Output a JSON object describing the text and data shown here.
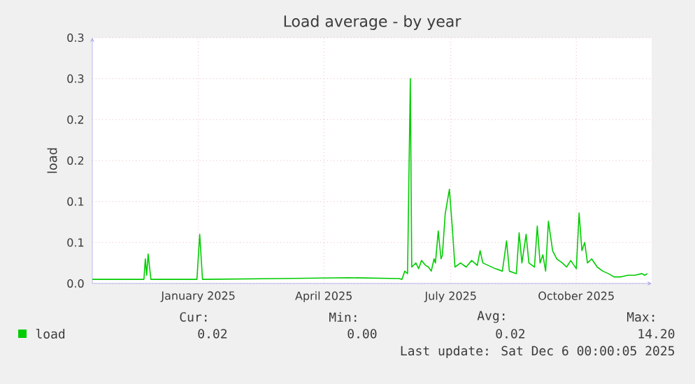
{
  "chart_data": {
    "type": "line",
    "title": "Load average - by year",
    "ylabel": "load",
    "x": [
      "2024-10-31",
      "2024-12-04",
      "2024-12-07",
      "2024-12-08",
      "2024-12-09",
      "2024-12-10",
      "2024-12-12",
      "2025-01-14",
      "2025-01-16",
      "2025-01-18",
      "2025-03-14",
      "2025-05-03",
      "2025-06-08",
      "2025-06-10",
      "2025-06-12",
      "2025-06-14",
      "2025-06-16",
      "2025-06-17",
      "2025-06-20",
      "2025-06-22",
      "2025-06-24",
      "2025-06-27",
      "2025-06-29",
      "2025-07-01",
      "2025-07-03",
      "2025-07-04",
      "2025-07-06",
      "2025-07-08",
      "2025-07-09",
      "2025-07-11",
      "2025-07-14",
      "2025-07-16",
      "2025-07-18",
      "2025-07-22",
      "2025-07-26",
      "2025-07-30",
      "2025-08-03",
      "2025-08-05",
      "2025-08-07",
      "2025-08-16",
      "2025-08-21",
      "2025-08-24",
      "2025-08-26",
      "2025-08-31",
      "2025-09-02",
      "2025-09-04",
      "2025-09-07",
      "2025-09-09",
      "2025-09-13",
      "2025-09-15",
      "2025-09-17",
      "2025-09-19",
      "2025-09-21",
      "2025-09-23",
      "2025-09-26",
      "2025-09-29",
      "2025-10-03",
      "2025-10-06",
      "2025-10-09",
      "2025-10-13",
      "2025-10-15",
      "2025-10-17",
      "2025-10-19",
      "2025-10-21",
      "2025-10-24",
      "2025-10-28",
      "2025-11-01",
      "2025-11-05",
      "2025-11-09",
      "2025-11-14",
      "2025-11-19",
      "2025-11-24",
      "2025-11-29",
      "2025-12-01",
      "2025-12-03"
    ],
    "series": [
      {
        "name": "load",
        "color": "#00cc00",
        "values": [
          0.005,
          0.005,
          0.005,
          0.03,
          0.01,
          0.036,
          0.005,
          0.005,
          0.06,
          0.005,
          0.006,
          0.007,
          0.006,
          0.005,
          0.015,
          0.012,
          0.25,
          0.02,
          0.025,
          0.018,
          0.028,
          0.022,
          0.02,
          0.015,
          0.03,
          0.025,
          0.064,
          0.03,
          0.035,
          0.085,
          0.115,
          0.07,
          0.02,
          0.025,
          0.02,
          0.028,
          0.022,
          0.04,
          0.025,
          0.018,
          0.015,
          0.052,
          0.015,
          0.012,
          0.062,
          0.025,
          0.06,
          0.025,
          0.02,
          0.07,
          0.025,
          0.035,
          0.015,
          0.076,
          0.04,
          0.03,
          0.025,
          0.02,
          0.028,
          0.018,
          0.086,
          0.04,
          0.05,
          0.025,
          0.03,
          0.02,
          0.015,
          0.012,
          0.008,
          0.008,
          0.01,
          0.01,
          0.012,
          0.01,
          0.012
        ]
      }
    ],
    "xlim": [
      "2024-10-31",
      "2025-12-06"
    ],
    "xticks": [
      {
        "value": "2025-01-15",
        "label": "January 2025"
      },
      {
        "value": "2025-04-15",
        "label": "April 2025"
      },
      {
        "value": "2025-07-15",
        "label": "July 2025"
      },
      {
        "value": "2025-10-13",
        "label": "October 2025"
      }
    ],
    "ylim": [
      0,
      0.3
    ],
    "yticks": [
      {
        "value": 0,
        "label": "0.0"
      },
      {
        "value": 0.05,
        "label": "0.1"
      },
      {
        "value": 0.1,
        "label": "0.1"
      },
      {
        "value": 0.15,
        "label": "0.2"
      },
      {
        "value": 0.2,
        "label": "0.2"
      },
      {
        "value": 0.25,
        "label": "0.3"
      },
      {
        "value": 0.3,
        "label": "0.3"
      }
    ],
    "grid": true,
    "legend": "bottom",
    "marker": "none",
    "line_style": "solid",
    "annotations": [
      "Cur:",
      "0.02",
      "Min:",
      "0.00",
      "Avg:",
      "0.02",
      "Max:",
      "14.20",
      "Last update: Sat Dec  6 00:00:05 2025"
    ]
  }
}
